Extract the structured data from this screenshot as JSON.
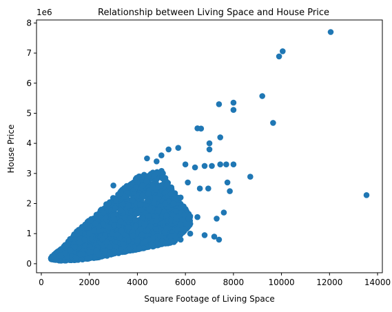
{
  "chart_data": {
    "type": "scatter",
    "title": "Relationship between Living Space and House Price",
    "xlabel": "Square Footage of Living Space",
    "ylabel": "House Price",
    "y_offset_label": "1e6",
    "xlim": [
      -200,
      14200
    ],
    "ylim": [
      -0.3,
      8.1
    ],
    "xticks": [
      0,
      2000,
      4000,
      6000,
      8000,
      10000,
      12000,
      14000
    ],
    "yticks": [
      0,
      1,
      2,
      3,
      4,
      5,
      6,
      7,
      8
    ],
    "y_unit_multiplier": 1000000,
    "grid": false,
    "marker_color": "#1f77b4",
    "series": [
      {
        "points": [
          [
            12050,
            7.7
          ],
          [
            10050,
            7.06
          ],
          [
            9900,
            6.89
          ],
          [
            9200,
            5.57
          ],
          [
            9650,
            4.68
          ],
          [
            8000,
            5.35
          ],
          [
            8000,
            5.11
          ],
          [
            7400,
            5.3
          ],
          [
            13540,
            2.28
          ],
          [
            8700,
            2.89
          ],
          [
            6500,
            4.5
          ],
          [
            6650,
            4.49
          ],
          [
            7450,
            4.2
          ],
          [
            7000,
            4.0
          ],
          [
            7000,
            3.8
          ],
          [
            7100,
            3.25
          ],
          [
            7450,
            3.3
          ],
          [
            7700,
            3.3
          ],
          [
            8000,
            3.3
          ],
          [
            7750,
            2.7
          ],
          [
            7850,
            2.41
          ],
          [
            7600,
            1.7
          ],
          [
            7400,
            0.8
          ],
          [
            7200,
            0.9
          ],
          [
            7300,
            1.5
          ],
          [
            6950,
            2.5
          ],
          [
            6800,
            3.25
          ],
          [
            6400,
            3.2
          ],
          [
            6600,
            2.5
          ],
          [
            6500,
            1.55
          ],
          [
            6000,
            3.3
          ],
          [
            5700,
            3.85
          ],
          [
            5300,
            3.8
          ],
          [
            5000,
            3.6
          ],
          [
            4800,
            3.4
          ],
          [
            4400,
            3.5
          ],
          [
            6100,
            2.7
          ],
          [
            5800,
            2.2
          ],
          [
            5500,
            2.0
          ],
          [
            4500,
            1.8
          ],
          [
            5200,
            1.6
          ],
          [
            5600,
            1.5
          ],
          [
            3000,
            2.6
          ],
          [
            3200,
            2.3
          ],
          [
            2800,
            2.0
          ],
          [
            2600,
            1.7
          ],
          [
            2500,
            1.8
          ],
          [
            3300,
            1.4
          ],
          [
            3800,
            2.1
          ],
          [
            4200,
            2.6
          ],
          [
            5800,
            0.8
          ],
          [
            6200,
            1.0
          ],
          [
            6800,
            0.95
          ],
          [
            4100,
            0.5
          ],
          [
            3500,
            0.4
          ],
          [
            2200,
            1.1
          ],
          [
            2000,
            1.0
          ],
          [
            1800,
            0.8
          ],
          [
            1600,
            0.7
          ],
          [
            1400,
            0.55
          ],
          [
            1200,
            0.45
          ],
          [
            1000,
            0.35
          ],
          [
            800,
            0.28
          ],
          [
            600,
            0.22
          ],
          [
            500,
            0.25
          ]
        ],
        "dense_region": {
          "upper_edge": [
            [
              400,
              0.22
            ],
            [
              900,
              0.55
            ],
            [
              1500,
              1.1
            ],
            [
              2000,
              1.45
            ],
            [
              3000,
              2.2
            ],
            [
              4000,
              2.9
            ],
            [
              5000,
              3.1
            ],
            [
              5600,
              2.3
            ],
            [
              6200,
              1.6
            ]
          ],
          "lower_edge": [
            [
              6200,
              1.3
            ],
            [
              5500,
              0.7
            ],
            [
              4500,
              0.55
            ],
            [
              3500,
              0.4
            ],
            [
              2500,
              0.22
            ],
            [
              1500,
              0.12
            ],
            [
              800,
              0.1
            ],
            [
              400,
              0.15
            ]
          ]
        }
      }
    ]
  }
}
